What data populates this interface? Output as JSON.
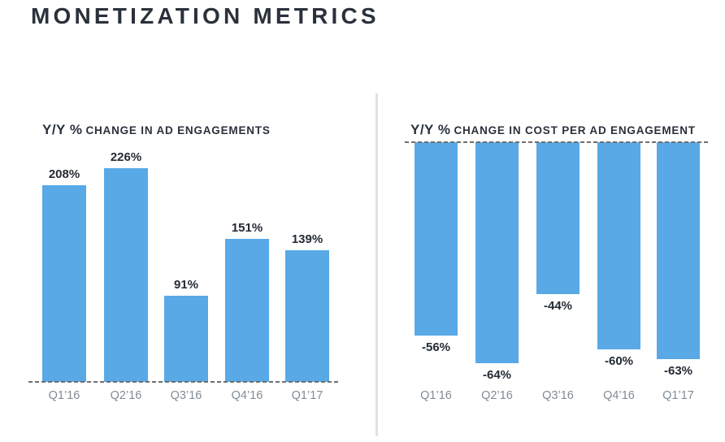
{
  "title": "MONETIZATION METRICS",
  "colors": {
    "bar": "#58a9e6",
    "heading": "#2a313b",
    "value_label": "#242b33",
    "category_label": "#828b94",
    "dashed_line": "#6f6f6f",
    "divider": "#dce3ea"
  },
  "chart_data": [
    {
      "type": "bar",
      "title_lead": "Y/Y %",
      "title_rest": "CHANGE IN AD ENGAGEMENTS",
      "categories": [
        "Q1’16",
        "Q2’16",
        "Q3’16",
        "Q4’16",
        "Q1’17"
      ],
      "values": [
        208,
        226,
        91,
        151,
        139
      ],
      "value_labels": [
        "208%",
        "226%",
        "91%",
        "151%",
        "139%"
      ],
      "unit": "percent",
      "direction": "up",
      "baseline": "dashed line at 0, bottom of bars",
      "ylim": [
        0,
        240
      ],
      "grid": false,
      "legend": false
    },
    {
      "type": "bar",
      "title_lead": "Y/Y %",
      "title_rest": "CHANGE IN COST PER AD ENGAGEMENT",
      "categories": [
        "Q1’16",
        "Q2’16",
        "Q3’16",
        "Q4’16",
        "Q1’17"
      ],
      "values": [
        -56,
        -64,
        -44,
        -60,
        -63
      ],
      "value_labels": [
        "-56%",
        "-64%",
        "-44%",
        "-60%",
        "-63%"
      ],
      "unit": "percent",
      "direction": "down",
      "baseline": "dashed line at 0, top of bars",
      "ylim": [
        -70,
        0
      ],
      "grid": false,
      "legend": false
    }
  ]
}
